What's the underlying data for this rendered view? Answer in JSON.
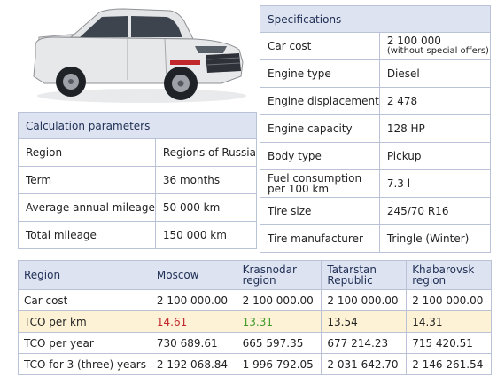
{
  "specifications": {
    "title": "Specifications",
    "rows": [
      {
        "label": "Car cost",
        "value": "2 100 000",
        "note": "(without special offers)"
      },
      {
        "label": "Engine type",
        "value": "Diesel"
      },
      {
        "label": "Engine displacement",
        "value": "2 478"
      },
      {
        "label": "Engine capacity",
        "value": "128 HP"
      },
      {
        "label": "Body type",
        "value": "Pickup"
      },
      {
        "label": "Fuel consumption per 100 km",
        "value": "7.3 l"
      },
      {
        "label": "Tire size",
        "value": "245/70 R16"
      },
      {
        "label": "Tire manufacturer",
        "value": "Tringle (Winter)"
      }
    ]
  },
  "calculation": {
    "title": "Calculation parameters",
    "rows": [
      {
        "label": "Region",
        "value": "Regions of Russia"
      },
      {
        "label": "Term",
        "value": "36 months"
      },
      {
        "label": "Average annual mileage",
        "value": "50 000 km"
      },
      {
        "label": "Total mileage",
        "value": "150 000 km"
      }
    ]
  },
  "tco": {
    "headers": [
      "Region",
      "Moscow",
      "Krasnodar region",
      "Tatarstan Republic",
      "Khabarovsk region"
    ],
    "rows": [
      {
        "label": "Car cost",
        "values": [
          "2 100 000.00",
          "2 100 000.00",
          "2 100 000.00",
          "2 100 000.00"
        ]
      },
      {
        "label": "TCO per km",
        "values": [
          "14.61",
          "13.31",
          "13.54",
          "14.31"
        ]
      },
      {
        "label": "TCO per year",
        "values": [
          "730 689.61",
          "665 597.35",
          "677 214.23",
          "715 420.51"
        ]
      },
      {
        "label": "TCO for 3 (three) years",
        "values": [
          "2 192 068.84",
          "1 996 792.05",
          "2 031 642.70",
          "2 146 261.54"
        ]
      }
    ]
  },
  "colors": {
    "header_bg": "#dde3f0",
    "highlight_row": "#fdf2d6",
    "max_value": "#c0282c",
    "min_value": "#3f9a2a",
    "car_body": "#e6e7e9",
    "car_accent": "#c0282c"
  }
}
